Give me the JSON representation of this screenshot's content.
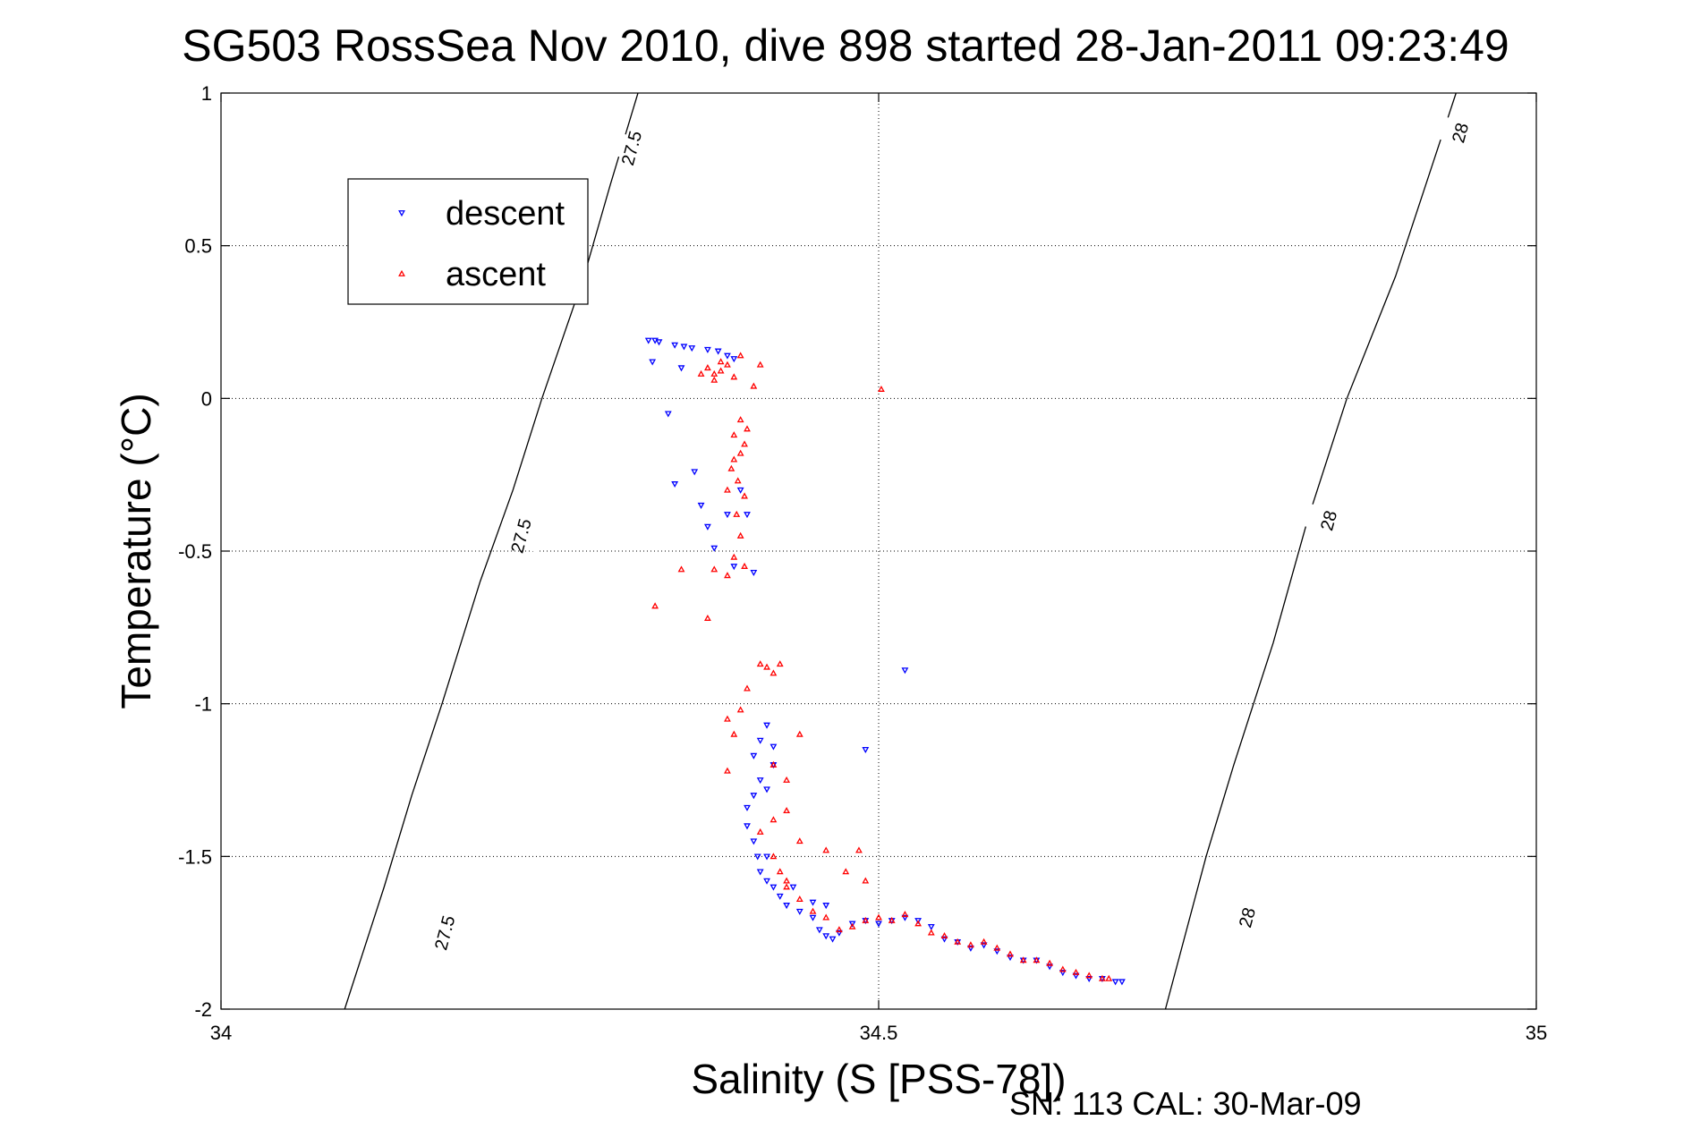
{
  "chart_data": {
    "type": "scatter",
    "title": "SG503 RossSea Nov 2010, dive 898 started 28-Jan-2011 09:23:49",
    "xlabel": "Salinity (S [PSS-78])",
    "ylabel": "Temperature (°C)",
    "xlim": [
      34,
      35
    ],
    "ylim": [
      -2,
      1
    ],
    "xticks": [
      34,
      34.5,
      35
    ],
    "xtick_labels": [
      "34",
      "34.5",
      "35"
    ],
    "yticks": [
      1,
      0.5,
      0,
      -0.5,
      -1,
      -1.5,
      -2
    ],
    "ytick_labels": [
      "1",
      "0.5",
      "0",
      "-0.5",
      "-1",
      "-1.5",
      "-2"
    ],
    "grid": true,
    "legend_position": "top-left",
    "footer": "SN: 113  CAL: 30-Mar-09",
    "contours": [
      {
        "label": "27.5",
        "points": [
          [
            34.317,
            1.0
          ],
          [
            34.296,
            0.7
          ],
          [
            34.276,
            0.4
          ],
          [
            34.244,
            0.0
          ],
          [
            34.222,
            -0.3
          ],
          [
            34.197,
            -0.6
          ],
          [
            34.168,
            -1.0
          ],
          [
            34.145,
            -1.3
          ],
          [
            34.124,
            -1.6
          ],
          [
            34.094,
            -2.0
          ]
        ],
        "label_positions": [
          [
            34.312,
            0.82
          ],
          [
            34.228,
            -0.45
          ],
          [
            34.17,
            -1.75
          ]
        ]
      },
      {
        "label": "28",
        "points": [
          [
            34.939,
            1.0
          ],
          [
            34.916,
            0.7
          ],
          [
            34.893,
            0.4
          ],
          [
            34.856,
            0.0
          ],
          [
            34.826,
            -0.4
          ],
          [
            34.8,
            -0.8
          ],
          [
            34.77,
            -1.2
          ],
          [
            34.749,
            -1.5
          ],
          [
            34.718,
            -2.0
          ]
        ],
        "label_positions": [
          [
            34.942,
            0.87
          ],
          [
            34.842,
            -0.4
          ],
          [
            34.78,
            -1.7
          ]
        ]
      }
    ],
    "series": [
      {
        "name": "descent",
        "color": "#0000ff",
        "marker": "triangle-down",
        "points": [
          [
            34.325,
            0.19
          ],
          [
            34.33,
            0.19
          ],
          [
            34.333,
            0.185
          ],
          [
            34.345,
            0.175
          ],
          [
            34.352,
            0.17
          ],
          [
            34.358,
            0.165
          ],
          [
            34.37,
            0.16
          ],
          [
            34.378,
            0.155
          ],
          [
            34.385,
            0.14
          ],
          [
            34.39,
            0.13
          ],
          [
            34.328,
            0.12
          ],
          [
            34.35,
            0.1
          ],
          [
            34.34,
            -0.05
          ],
          [
            34.345,
            -0.28
          ],
          [
            34.36,
            -0.24
          ],
          [
            34.365,
            -0.35
          ],
          [
            34.37,
            -0.42
          ],
          [
            34.375,
            -0.49
          ],
          [
            34.385,
            -0.38
          ],
          [
            34.395,
            -0.3
          ],
          [
            34.4,
            -0.38
          ],
          [
            34.405,
            -0.57
          ],
          [
            34.39,
            -0.55
          ],
          [
            34.52,
            -0.89
          ],
          [
            34.415,
            -1.07
          ],
          [
            34.41,
            -1.12
          ],
          [
            34.42,
            -1.14
          ],
          [
            34.405,
            -1.17
          ],
          [
            34.41,
            -1.25
          ],
          [
            34.405,
            -1.3
          ],
          [
            34.4,
            -1.34
          ],
          [
            34.415,
            -1.28
          ],
          [
            34.42,
            -1.2
          ],
          [
            34.4,
            -1.4
          ],
          [
            34.405,
            -1.45
          ],
          [
            34.408,
            -1.5
          ],
          [
            34.41,
            -1.55
          ],
          [
            34.415,
            -1.58
          ],
          [
            34.42,
            -1.6
          ],
          [
            34.425,
            -1.63
          ],
          [
            34.43,
            -1.66
          ],
          [
            34.44,
            -1.68
          ],
          [
            34.45,
            -1.7
          ],
          [
            34.455,
            -1.74
          ],
          [
            34.46,
            -1.76
          ],
          [
            34.465,
            -1.77
          ],
          [
            34.47,
            -1.75
          ],
          [
            34.48,
            -1.72
          ],
          [
            34.49,
            -1.71
          ],
          [
            34.5,
            -1.72
          ],
          [
            34.51,
            -1.71
          ],
          [
            34.52,
            -1.7
          ],
          [
            34.53,
            -1.71
          ],
          [
            34.54,
            -1.73
          ],
          [
            34.55,
            -1.77
          ],
          [
            34.56,
            -1.78
          ],
          [
            34.57,
            -1.8
          ],
          [
            34.58,
            -1.79
          ],
          [
            34.59,
            -1.81
          ],
          [
            34.6,
            -1.83
          ],
          [
            34.61,
            -1.84
          ],
          [
            34.62,
            -1.84
          ],
          [
            34.63,
            -1.86
          ],
          [
            34.64,
            -1.88
          ],
          [
            34.65,
            -1.89
          ],
          [
            34.66,
            -1.9
          ],
          [
            34.67,
            -1.9
          ],
          [
            34.68,
            -1.91
          ],
          [
            34.685,
            -1.91
          ],
          [
            34.49,
            -1.15
          ],
          [
            34.45,
            -1.65
          ],
          [
            34.46,
            -1.66
          ],
          [
            34.415,
            -1.5
          ],
          [
            34.435,
            -1.6
          ]
        ]
      },
      {
        "name": "ascent",
        "color": "#ff0000",
        "marker": "triangle-up",
        "points": [
          [
            34.37,
            0.1
          ],
          [
            34.375,
            0.08
          ],
          [
            34.38,
            0.09
          ],
          [
            34.385,
            0.11
          ],
          [
            34.39,
            0.07
          ],
          [
            34.38,
            0.12
          ],
          [
            34.365,
            0.08
          ],
          [
            34.375,
            0.06
          ],
          [
            34.395,
            0.14
          ],
          [
            34.41,
            0.11
          ],
          [
            34.405,
            0.04
          ],
          [
            34.502,
            0.03
          ],
          [
            34.395,
            -0.07
          ],
          [
            34.4,
            -0.1
          ],
          [
            34.39,
            -0.12
          ],
          [
            34.398,
            -0.15
          ],
          [
            34.395,
            -0.18
          ],
          [
            34.39,
            -0.2
          ],
          [
            34.388,
            -0.23
          ],
          [
            34.393,
            -0.27
          ],
          [
            34.385,
            -0.3
          ],
          [
            34.398,
            -0.32
          ],
          [
            34.392,
            -0.38
          ],
          [
            34.395,
            -0.45
          ],
          [
            34.39,
            -0.52
          ],
          [
            34.398,
            -0.55
          ],
          [
            34.385,
            -0.58
          ],
          [
            34.375,
            -0.56
          ],
          [
            34.35,
            -0.56
          ],
          [
            34.33,
            -0.68
          ],
          [
            34.37,
            -0.72
          ],
          [
            34.41,
            -0.87
          ],
          [
            34.415,
            -0.88
          ],
          [
            34.42,
            -0.9
          ],
          [
            34.425,
            -0.87
          ],
          [
            34.4,
            -0.95
          ],
          [
            34.395,
            -1.02
          ],
          [
            34.39,
            -1.1
          ],
          [
            34.385,
            -1.05
          ],
          [
            34.42,
            -1.2
          ],
          [
            34.43,
            -1.25
          ],
          [
            34.44,
            -1.1
          ],
          [
            34.43,
            -1.35
          ],
          [
            34.42,
            -1.38
          ],
          [
            34.41,
            -1.42
          ],
          [
            34.385,
            -1.22
          ],
          [
            34.44,
            -1.45
          ],
          [
            34.46,
            -1.48
          ],
          [
            34.475,
            -1.55
          ],
          [
            34.49,
            -1.58
          ],
          [
            34.485,
            -1.48
          ],
          [
            34.43,
            -1.6
          ],
          [
            34.44,
            -1.64
          ],
          [
            34.45,
            -1.68
          ],
          [
            34.46,
            -1.7
          ],
          [
            34.47,
            -1.74
          ],
          [
            34.48,
            -1.73
          ],
          [
            34.49,
            -1.71
          ],
          [
            34.5,
            -1.7
          ],
          [
            34.51,
            -1.71
          ],
          [
            34.52,
            -1.69
          ],
          [
            34.53,
            -1.72
          ],
          [
            34.54,
            -1.75
          ],
          [
            34.55,
            -1.76
          ],
          [
            34.56,
            -1.78
          ],
          [
            34.57,
            -1.79
          ],
          [
            34.58,
            -1.78
          ],
          [
            34.59,
            -1.8
          ],
          [
            34.6,
            -1.82
          ],
          [
            34.61,
            -1.84
          ],
          [
            34.62,
            -1.84
          ],
          [
            34.63,
            -1.85
          ],
          [
            34.64,
            -1.87
          ],
          [
            34.65,
            -1.88
          ],
          [
            34.66,
            -1.89
          ],
          [
            34.67,
            -1.9
          ],
          [
            34.675,
            -1.9
          ],
          [
            34.42,
            -1.5
          ],
          [
            34.425,
            -1.55
          ],
          [
            34.43,
            -1.58
          ]
        ]
      }
    ]
  }
}
